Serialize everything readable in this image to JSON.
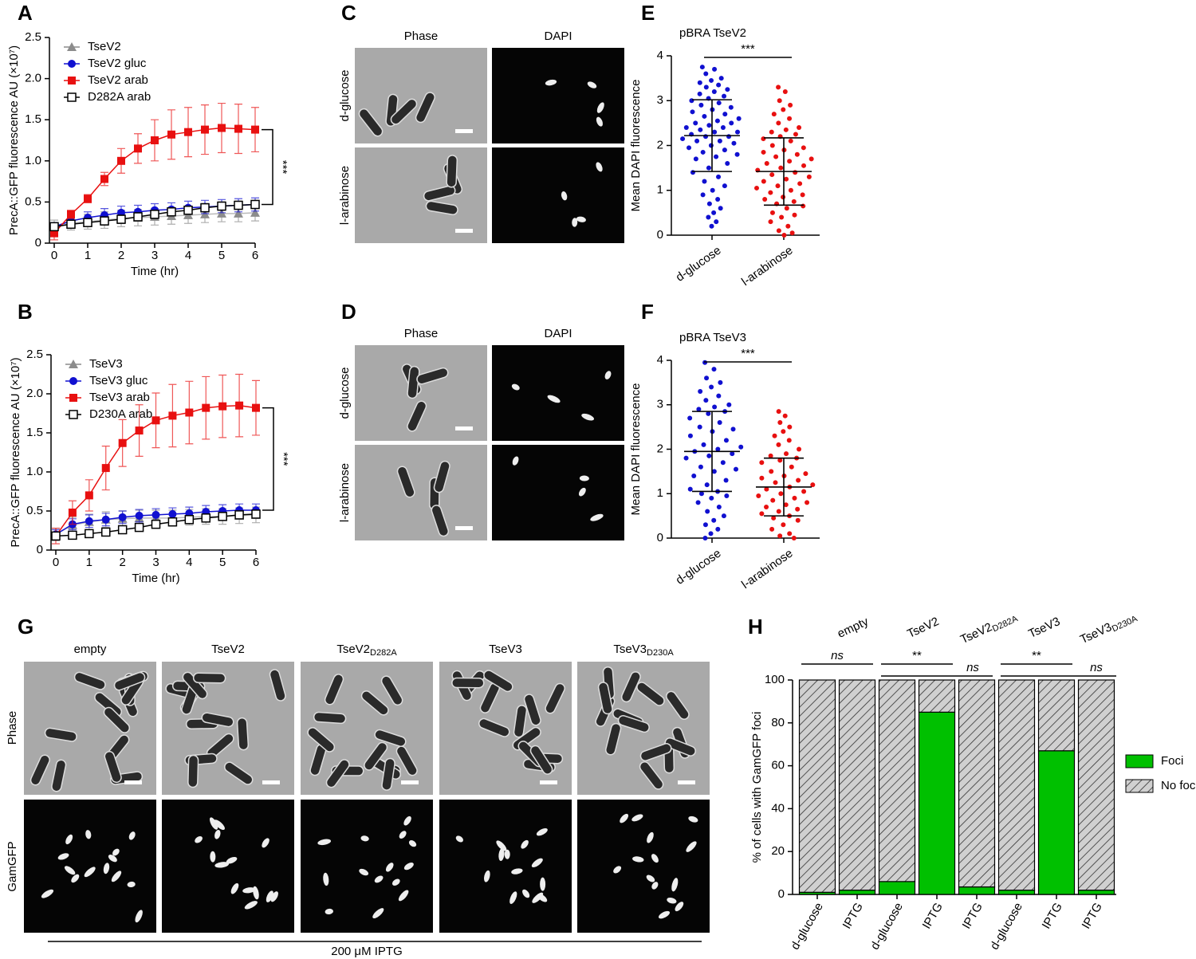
{
  "chart_data": [
    {
      "type": "line",
      "label": "A",
      "xlabel": "Time (hr)",
      "ylabel": "PrecA::GFP fluorescence AU (×10⁷)",
      "x": [
        0,
        0.5,
        1,
        1.5,
        2,
        2.5,
        3,
        3.5,
        4,
        4.5,
        5,
        5.5,
        6
      ],
      "xlim": [
        0,
        6
      ],
      "xticks": [
        0,
        1,
        2,
        3,
        4,
        5,
        6
      ],
      "ylim": [
        0,
        2.5
      ],
      "yticks": [
        0,
        0.5,
        {
          "value": 1,
          "label": "1.0"
        },
        1.5,
        {
          "value": 2,
          "label": "2.0"
        },
        2.5
      ],
      "series": [
        {
          "name": "TseV2",
          "color": "#8c8c8c",
          "marker": "triangle",
          "values": [
            0.2,
            0.24,
            0.26,
            0.28,
            0.3,
            0.31,
            0.32,
            0.33,
            0.34,
            0.35,
            0.36,
            0.36,
            0.37
          ],
          "errors": [
            0.08,
            0.08,
            0.09,
            0.1,
            0.1,
            0.1,
            0.1,
            0.1,
            0.1,
            0.1,
            0.1,
            0.1,
            0.1
          ]
        },
        {
          "name": "TseV2 gluc",
          "color": "#1010d0",
          "marker": "circle",
          "values": [
            0.2,
            0.27,
            0.31,
            0.34,
            0.37,
            0.38,
            0.4,
            0.41,
            0.43,
            0.44,
            0.45,
            0.46,
            0.47
          ],
          "errors": [
            0.05,
            0.06,
            0.07,
            0.08,
            0.08,
            0.08,
            0.08,
            0.08,
            0.08,
            0.08,
            0.08,
            0.08,
            0.08
          ]
        },
        {
          "name": "TseV2 arab",
          "color": "#e81010",
          "marker": "square",
          "values": [
            0.12,
            0.35,
            0.54,
            0.78,
            1.0,
            1.15,
            1.25,
            1.32,
            1.35,
            1.38,
            1.4,
            1.39,
            1.38
          ],
          "errors": [
            0.08,
            0.05,
            0.05,
            0.08,
            0.15,
            0.18,
            0.25,
            0.3,
            0.3,
            0.3,
            0.3,
            0.3,
            0.27
          ]
        },
        {
          "name": "D282A arab",
          "color": "#000000",
          "marker": "open-square",
          "values": [
            0.2,
            0.23,
            0.25,
            0.27,
            0.29,
            0.32,
            0.35,
            0.38,
            0.4,
            0.43,
            0.45,
            0.46,
            0.47
          ],
          "errors": [
            0.03,
            0.04,
            0.04,
            0.05,
            0.05,
            0.05,
            0.05,
            0.05,
            0.05,
            0.05,
            0.05,
            0.05,
            0.05
          ]
        }
      ],
      "annotation": "***"
    },
    {
      "type": "line",
      "label": "B",
      "xlabel": "Time (hr)",
      "ylabel": "PrecA::GFP fluorescence AU (×10⁷)",
      "x": [
        0,
        0.5,
        1,
        1.5,
        2,
        2.5,
        3,
        3.5,
        4,
        4.5,
        5,
        5.5,
        6
      ],
      "xlim": [
        0,
        6
      ],
      "xticks": [
        0,
        1,
        2,
        3,
        4,
        5,
        6
      ],
      "ylim": [
        0,
        2.5
      ],
      "yticks": [
        0,
        0.5,
        {
          "value": 1,
          "label": "1.0"
        },
        1.5,
        {
          "value": 2,
          "label": "2.0"
        },
        2.5
      ],
      "series": [
        {
          "name": "TseV3",
          "color": "#8c8c8c",
          "marker": "triangle",
          "values": [
            0.2,
            0.32,
            0.36,
            0.39,
            0.4,
            0.41,
            0.41,
            0.41,
            0.42,
            0.43,
            0.43,
            0.44,
            0.45
          ],
          "errors": [
            0.08,
            0.1,
            0.1,
            0.1,
            0.1,
            0.1,
            0.1,
            0.1,
            0.1,
            0.1,
            0.1,
            0.1,
            0.1
          ]
        },
        {
          "name": "TseV3 gluc",
          "color": "#1010d0",
          "marker": "circle",
          "values": [
            0.2,
            0.33,
            0.37,
            0.39,
            0.42,
            0.44,
            0.45,
            0.46,
            0.47,
            0.49,
            0.5,
            0.51,
            0.51
          ],
          "errors": [
            0.06,
            0.07,
            0.08,
            0.08,
            0.08,
            0.08,
            0.08,
            0.08,
            0.08,
            0.08,
            0.08,
            0.08,
            0.08
          ]
        },
        {
          "name": "TseV3 arab",
          "color": "#e81010",
          "marker": "square",
          "values": [
            0.18,
            0.48,
            0.7,
            1.05,
            1.37,
            1.53,
            1.66,
            1.72,
            1.76,
            1.82,
            1.84,
            1.85,
            1.82
          ],
          "errors": [
            0.1,
            0.15,
            0.2,
            0.28,
            0.3,
            0.33,
            0.35,
            0.4,
            0.4,
            0.4,
            0.4,
            0.4,
            0.35
          ]
        },
        {
          "name": "D230A arab",
          "color": "#000000",
          "marker": "open-square",
          "values": [
            0.18,
            0.19,
            0.21,
            0.23,
            0.26,
            0.29,
            0.33,
            0.36,
            0.39,
            0.41,
            0.43,
            0.45,
            0.46
          ],
          "errors": [
            0.03,
            0.03,
            0.04,
            0.04,
            0.05,
            0.05,
            0.05,
            0.05,
            0.05,
            0.05,
            0.05,
            0.05,
            0.05
          ]
        }
      ],
      "annotation": "***"
    },
    {
      "type": "strip",
      "label": "E",
      "title": "pBRA TseV2",
      "ylabel": "Mean DAPI fluorescence",
      "categories": [
        "d-glucose",
        "l-arabinose"
      ],
      "colors": [
        "#1010d0",
        "#e81010"
      ],
      "ylim": [
        0,
        4
      ],
      "yticks": [
        0,
        1,
        2,
        3,
        4
      ],
      "points": [
        [
          3.75,
          3.7,
          3.6,
          3.5,
          3.45,
          3.4,
          3.35,
          3.3,
          3.25,
          3.2,
          3.15,
          3.1,
          3.05,
          3.0,
          2.95,
          2.9,
          2.85,
          2.8,
          2.75,
          2.7,
          2.65,
          2.6,
          2.55,
          2.5,
          2.5,
          2.45,
          2.4,
          2.4,
          2.35,
          2.3,
          2.3,
          2.25,
          2.2,
          2.2,
          2.15,
          2.1,
          2.1,
          2.05,
          2.0,
          1.95,
          1.9,
          1.85,
          1.8,
          1.75,
          1.7,
          1.6,
          1.5,
          1.4,
          1.3,
          1.2,
          1.1,
          1.0,
          0.9,
          0.8,
          0.7,
          0.6,
          0.5,
          0.4,
          0.3,
          0.2
        ],
        [
          3.3,
          3.2,
          3.0,
          2.9,
          2.8,
          2.7,
          2.6,
          2.5,
          2.4,
          2.35,
          2.3,
          2.25,
          2.2,
          2.15,
          2.1,
          2.0,
          1.95,
          1.9,
          1.85,
          1.8,
          1.75,
          1.7,
          1.65,
          1.6,
          1.55,
          1.5,
          1.45,
          1.4,
          1.35,
          1.3,
          1.25,
          1.2,
          1.15,
          1.1,
          1.05,
          1.0,
          0.95,
          0.9,
          0.85,
          0.8,
          0.75,
          0.7,
          0.65,
          0.6,
          0.5,
          0.45,
          0.4,
          0.3,
          0.2,
          0.1,
          0.05,
          0.0
        ]
      ],
      "means": [
        2.22,
        1.42
      ],
      "sds": [
        0.8,
        0.75
      ],
      "annotation": "***"
    },
    {
      "type": "strip",
      "label": "F",
      "title": "pBRA TseV3",
      "ylabel": "Mean DAPI fluorescence",
      "categories": [
        "d-glucose",
        "l-arabinose"
      ],
      "colors": [
        "#1010d0",
        "#e81010"
      ],
      "ylim": [
        0,
        4
      ],
      "yticks": [
        0,
        1,
        2,
        3,
        4
      ],
      "points": [
        [
          3.95,
          3.8,
          3.6,
          3.5,
          3.4,
          3.3,
          3.2,
          3.1,
          3.0,
          2.95,
          2.9,
          2.85,
          2.8,
          2.7,
          2.6,
          2.5,
          2.45,
          2.4,
          2.3,
          2.2,
          2.1,
          2.05,
          2.0,
          1.95,
          1.9,
          1.85,
          1.8,
          1.7,
          1.6,
          1.55,
          1.5,
          1.4,
          1.3,
          1.2,
          1.1,
          1.05,
          1.0,
          0.95,
          0.9,
          0.8,
          0.7,
          0.6,
          0.5,
          0.4,
          0.3,
          0.2,
          0.1,
          0.0
        ],
        [
          2.85,
          2.75,
          2.6,
          2.5,
          2.4,
          2.3,
          2.2,
          2.1,
          2.0,
          1.9,
          1.85,
          1.8,
          1.75,
          1.7,
          1.6,
          1.5,
          1.45,
          1.4,
          1.35,
          1.3,
          1.25,
          1.2,
          1.15,
          1.1,
          1.05,
          1.0,
          0.95,
          0.9,
          0.85,
          0.8,
          0.75,
          0.7,
          0.65,
          0.6,
          0.55,
          0.5,
          0.45,
          0.4,
          0.3,
          0.2,
          0.1,
          0.05,
          0.0
        ]
      ],
      "means": [
        1.95,
        1.15
      ],
      "sds": [
        0.9,
        0.65
      ],
      "annotation": "***"
    },
    {
      "type": "stacked-bar",
      "label": "H",
      "ylabel": "% of cells with GamGFP foci",
      "categories": [
        "d-glucose",
        "IPTG",
        "d-glucose",
        "IPTG",
        "IPTG",
        "d-glucose",
        "IPTG",
        "IPTG"
      ],
      "ylim": [
        0,
        100
      ],
      "yticks": [
        0,
        20,
        40,
        60,
        80,
        100
      ],
      "series": [
        {
          "name": "Foci",
          "color": "#00c000",
          "values": [
            1,
            2,
            6,
            85,
            3.5,
            2,
            67,
            2
          ],
          "errors": [
            0.5,
            0.5,
            1.5,
            3,
            1.5,
            0.8,
            12,
            0.5
          ]
        },
        {
          "name": "No foci",
          "color": "#c8c8c8",
          "pattern": "hatch",
          "values": [
            99,
            98,
            94,
            15,
            96.5,
            98,
            33,
            98
          ]
        }
      ],
      "group_labels": [
        {
          "name": "empty"
        },
        {
          "name": "TseV2"
        },
        {
          "name": "TseV2",
          "sub": "D282A"
        },
        {
          "name": "TseV3"
        },
        {
          "name": "TseV3",
          "sub": "D230A"
        }
      ],
      "annotations": [
        "ns",
        "**",
        "ns",
        "**",
        "ns"
      ],
      "legend": "right"
    }
  ],
  "micrographs": {
    "C": {
      "label": "C",
      "columns": [
        "Phase",
        "DAPI"
      ],
      "rows": [
        "d-glucose",
        "l-arabinose"
      ]
    },
    "D": {
      "label": "D",
      "columns": [
        "Phase",
        "DAPI"
      ],
      "rows": [
        "d-glucose",
        "l-arabinose"
      ]
    },
    "G": {
      "label": "G",
      "columns": [
        {
          "name": "empty"
        },
        {
          "name": "TseV2"
        },
        {
          "name": "TseV2",
          "sub": "D282A"
        },
        {
          "name": "TseV3"
        },
        {
          "name": "TseV3",
          "sub": "D230A"
        }
      ],
      "rows": [
        "Phase",
        "GamGFP"
      ],
      "footer": "200 μM IPTG"
    }
  }
}
